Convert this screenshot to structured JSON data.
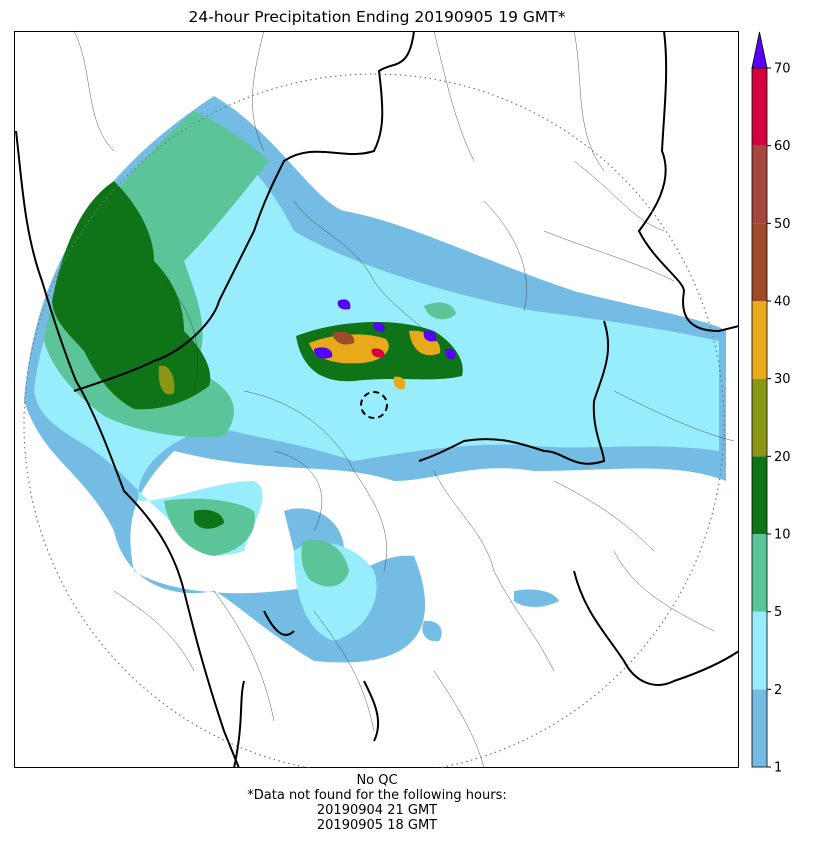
{
  "title": "24-hour Precipitation Ending 20190905 19 GMT*",
  "colorbar": {
    "levels": [
      1,
      2,
      5,
      10,
      20,
      30,
      40,
      50,
      60,
      70
    ],
    "tick_labels": [
      "1",
      "2",
      "5",
      "10",
      "20",
      "30",
      "40",
      "50",
      "60",
      "70"
    ],
    "colors": [
      "#74bce3",
      "#98edfc",
      "#5cc499",
      "#0f7417",
      "#8a9715",
      "#e8aa1b",
      "#9d4c27",
      "#a6473f",
      "#d4003f"
    ],
    "extend_color": "#5500ff"
  },
  "footer": {
    "qc": "No QC",
    "note": "*Data not found for the following hours:",
    "missing_hours": [
      "20190904 21 GMT",
      "20190905 18 GMT"
    ]
  }
}
